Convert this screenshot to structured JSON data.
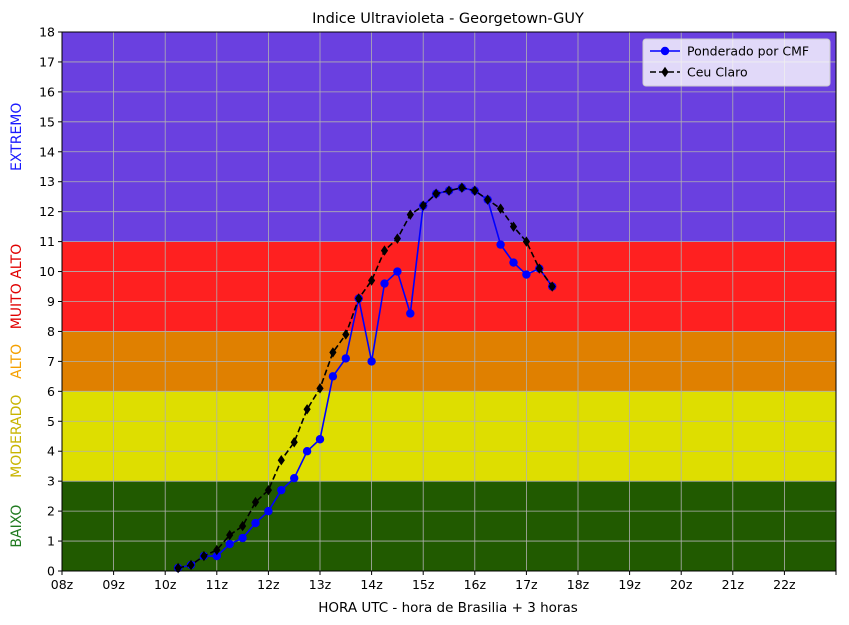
{
  "chart_data": {
    "type": "line",
    "title": "Indice Ultravioleta - Georgetown-GUY",
    "xlabel": "HORA UTC - hora de Brasilia + 3 horas",
    "ylabel": "",
    "xlim": [
      8,
      23
    ],
    "ylim": [
      0,
      18
    ],
    "grid": true,
    "legend_position": "top-right",
    "x_ticks": [
      {
        "value": 8,
        "label": "08z"
      },
      {
        "value": 9,
        "label": "09z"
      },
      {
        "value": 10,
        "label": "10z"
      },
      {
        "value": 11,
        "label": "11z"
      },
      {
        "value": 12,
        "label": "12z"
      },
      {
        "value": 13,
        "label": "13z"
      },
      {
        "value": 14,
        "label": "14z"
      },
      {
        "value": 15,
        "label": "15z"
      },
      {
        "value": 16,
        "label": "16z"
      },
      {
        "value": 17,
        "label": "17z"
      },
      {
        "value": 18,
        "label": "18z"
      },
      {
        "value": 19,
        "label": "19z"
      },
      {
        "value": 20,
        "label": "20z"
      },
      {
        "value": 21,
        "label": "21z"
      },
      {
        "value": 22,
        "label": "22z"
      },
      {
        "value": 23,
        "label": ""
      }
    ],
    "y_ticks": [
      0,
      1,
      2,
      3,
      4,
      5,
      6,
      7,
      8,
      9,
      10,
      11,
      12,
      13,
      14,
      15,
      16,
      17,
      18
    ],
    "bands": [
      {
        "label": "BAIXO",
        "from": 0,
        "to": 3,
        "fill": "#215a00",
        "text_color": "#1f7a1f"
      },
      {
        "label": "MODERADO",
        "from": 3,
        "to": 6,
        "fill": "#dede00",
        "text_color": "#c8b400"
      },
      {
        "label": "ALTO",
        "from": 6,
        "to": 8,
        "fill": "#e08000",
        "text_color": "#f5a000"
      },
      {
        "label": "MUITO ALTO",
        "from": 8,
        "to": 11,
        "fill": "#ff2020",
        "text_color": "#e00000"
      },
      {
        "label": "EXTREMO",
        "from": 11,
        "to": 18,
        "fill": "#6a40e0",
        "text_color": "#1a1aff"
      }
    ],
    "series": [
      {
        "name": "Ponderado por CMF",
        "color": "#0000ff",
        "marker": "circle",
        "dash": "solid",
        "x": [
          10.25,
          10.5,
          10.75,
          11.0,
          11.25,
          11.5,
          11.75,
          12.0,
          12.25,
          12.5,
          12.75,
          13.0,
          13.25,
          13.5,
          13.75,
          14.0,
          14.25,
          14.5,
          14.75,
          15.0,
          15.25,
          15.5,
          15.75,
          16.0,
          16.25,
          16.5,
          16.75,
          17.0,
          17.25,
          17.5
        ],
        "values": [
          0.1,
          0.2,
          0.5,
          0.5,
          0.9,
          1.1,
          1.6,
          2.0,
          2.7,
          3.1,
          4.0,
          4.4,
          6.5,
          7.1,
          9.1,
          7.0,
          9.6,
          10.0,
          8.6,
          12.2,
          12.6,
          12.7,
          12.8,
          12.7,
          12.4,
          10.9,
          10.3,
          9.9,
          10.1,
          9.5
        ]
      },
      {
        "name": "Ceu Claro",
        "color": "#000000",
        "marker": "diamond",
        "dash": "dashed",
        "x": [
          10.25,
          10.5,
          10.75,
          11.0,
          11.25,
          11.5,
          11.75,
          12.0,
          12.25,
          12.5,
          12.75,
          13.0,
          13.25,
          13.5,
          13.75,
          14.0,
          14.25,
          14.5,
          14.75,
          15.0,
          15.25,
          15.5,
          15.75,
          16.0,
          16.25,
          16.5,
          16.75,
          17.0,
          17.25,
          17.5
        ],
        "values": [
          0.1,
          0.2,
          0.5,
          0.7,
          1.2,
          1.5,
          2.3,
          2.7,
          3.7,
          4.3,
          5.4,
          6.1,
          7.3,
          7.9,
          9.1,
          9.7,
          10.7,
          11.1,
          11.9,
          12.2,
          12.6,
          12.7,
          12.8,
          12.7,
          12.4,
          12.1,
          11.5,
          11.0,
          10.1,
          9.5
        ]
      }
    ]
  }
}
